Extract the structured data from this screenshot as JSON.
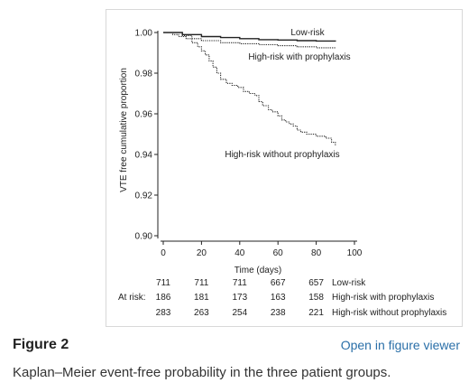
{
  "figure": {
    "label": "Figure 2",
    "viewer_link": "Open in figure viewer",
    "caption": "Kaplan–Meier event-free probability in the three patient groups."
  },
  "chart_data": {
    "type": "line",
    "step": true,
    "ylabel": "VTE free cumulative proportion",
    "xlabel": "Time (days)",
    "xlim": [
      0,
      100
    ],
    "ylim": [
      0.9,
      1.0
    ],
    "xticks": [
      "0",
      "20",
      "40",
      "60",
      "80",
      "100"
    ],
    "yticks": [
      "0.90",
      "0.92",
      "0.94",
      "0.96",
      "0.98",
      "1.00"
    ],
    "series": [
      {
        "name": "Low-risk",
        "style": "solid",
        "x": [
          0,
          10,
          20,
          30,
          40,
          50,
          60,
          70,
          80,
          90
        ],
        "y": [
          1.0,
          0.999,
          0.998,
          0.9975,
          0.997,
          0.9965,
          0.9963,
          0.996,
          0.9958,
          0.9955
        ]
      },
      {
        "name": "High-risk with prophylaxis",
        "style": "dotted",
        "x": [
          0,
          10,
          15,
          20,
          30,
          40,
          50,
          60,
          70,
          80,
          90
        ],
        "y": [
          1.0,
          0.9985,
          0.997,
          0.996,
          0.995,
          0.9945,
          0.994,
          0.9935,
          0.993,
          0.9925,
          0.992
        ]
      },
      {
        "name": "High-risk without prophylaxis",
        "style": "dotted",
        "x": [
          0,
          5,
          8,
          12,
          15,
          18,
          20,
          22,
          24,
          26,
          28,
          30,
          33,
          36,
          39,
          42,
          45,
          48,
          50,
          52,
          55,
          57,
          60,
          62,
          64,
          66,
          68,
          70,
          72,
          75,
          78,
          80,
          85,
          88,
          90
        ],
        "y": [
          1.0,
          0.999,
          0.998,
          0.997,
          0.995,
          0.993,
          0.991,
          0.989,
          0.986,
          0.983,
          0.98,
          0.977,
          0.975,
          0.974,
          0.973,
          0.971,
          0.97,
          0.969,
          0.966,
          0.964,
          0.962,
          0.961,
          0.959,
          0.957,
          0.956,
          0.955,
          0.954,
          0.952,
          0.951,
          0.95,
          0.95,
          0.949,
          0.948,
          0.946,
          0.944
        ]
      }
    ],
    "annotations": [
      {
        "text": "Low-risk"
      },
      {
        "text": "High-risk with prophylaxis"
      },
      {
        "text": "High-risk without prophylaxis"
      }
    ],
    "at_risk": {
      "label": "At risk:",
      "times": [
        0,
        20,
        40,
        60,
        80
      ],
      "rows": [
        {
          "name": "Low-risk",
          "values": [
            "711",
            "711",
            "711",
            "667",
            "657"
          ]
        },
        {
          "name": "High-risk with prophylaxis",
          "values": [
            "186",
            "181",
            "173",
            "163",
            "158"
          ]
        },
        {
          "name": "High-risk without prophylaxis",
          "values": [
            "283",
            "263",
            "254",
            "238",
            "221"
          ]
        }
      ]
    }
  }
}
